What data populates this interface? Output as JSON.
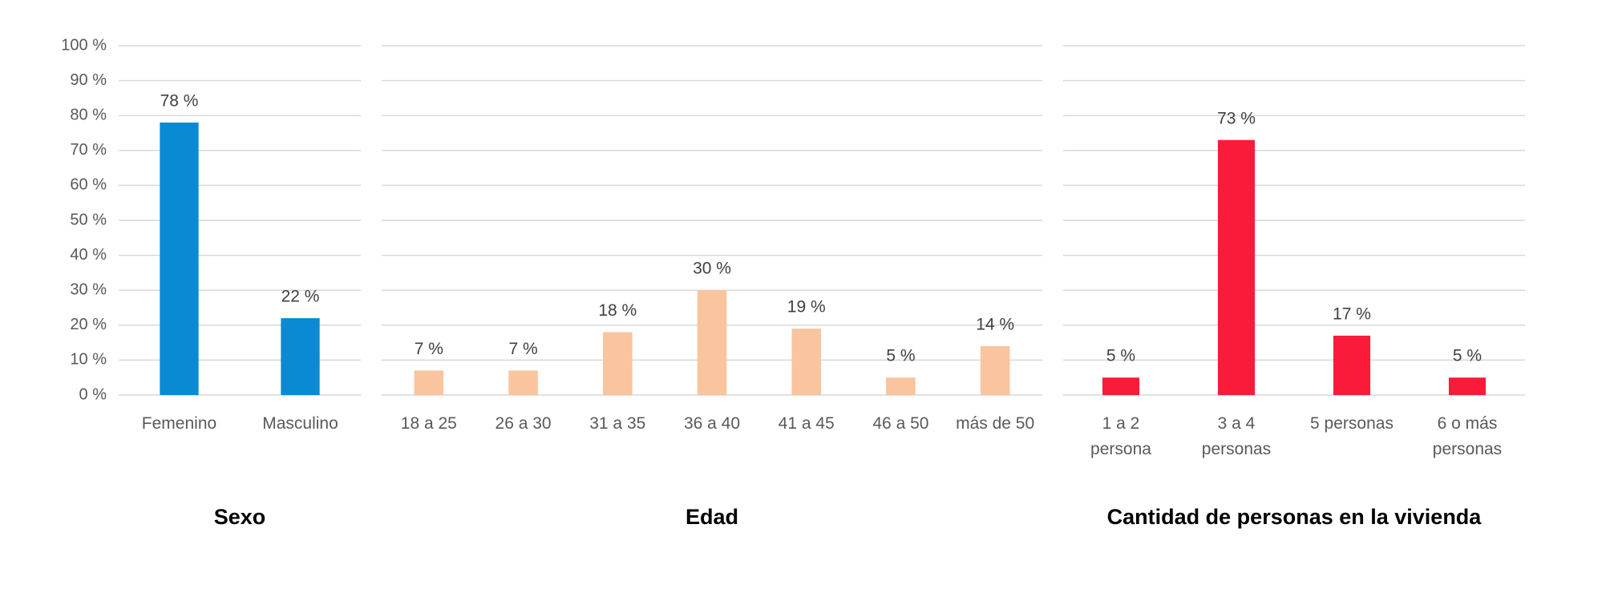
{
  "chart_data": [
    {
      "type": "bar",
      "title": "Sexo",
      "categories": [
        "Femenino",
        "Masculino"
      ],
      "values": [
        78,
        22
      ],
      "value_labels": [
        "78 %",
        "22 %"
      ],
      "color": "#0a8ad2",
      "ylim": [
        0,
        100
      ],
      "yticks": [
        {
          "value": 0,
          "label": "0 %"
        },
        {
          "value": 10,
          "label": "10 %"
        },
        {
          "value": 20,
          "label": "20 %"
        },
        {
          "value": 30,
          "label": "30 %"
        },
        {
          "value": 40,
          "label": "40 %"
        },
        {
          "value": 50,
          "label": "50 %"
        },
        {
          "value": 60,
          "label": "60 %"
        },
        {
          "value": 70,
          "label": "70 %"
        },
        {
          "value": 80,
          "label": "80 %"
        },
        {
          "value": 90,
          "label": "90 %"
        },
        {
          "value": 100,
          "label": "100 %"
        }
      ],
      "grid": true
    },
    {
      "type": "bar",
      "title": "Edad",
      "categories": [
        "18 a 25",
        "26 a 30",
        "31 a 35",
        "36 a 40",
        "41 a 45",
        "46 a 50",
        "más de 50"
      ],
      "values": [
        7,
        7,
        18,
        30,
        19,
        5,
        14
      ],
      "value_labels": [
        "7 %",
        "7 %",
        "18 %",
        "30 %",
        "19 %",
        "5 %",
        "14 %"
      ],
      "color": "#f9c49e",
      "ylim": [
        0,
        100
      ],
      "grid": true
    },
    {
      "type": "bar",
      "title": "Cantidad de personas en la vivienda",
      "categories": [
        "1 a 2 persona",
        "3 a 4 personas",
        "5 personas",
        "6 o más personas"
      ],
      "values": [
        5,
        73,
        17,
        5
      ],
      "value_labels": [
        "5 %",
        "73 %",
        "17 %",
        "5 %"
      ],
      "color": "#fa1a3a",
      "ylim": [
        0,
        100
      ],
      "grid": true
    }
  ]
}
